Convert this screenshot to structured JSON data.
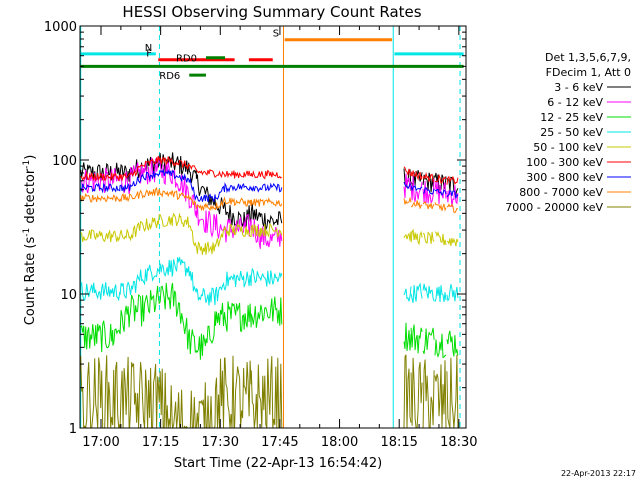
{
  "chart_data": {
    "type": "line",
    "title": "HESSI Observing Summary Count Rates",
    "xlabel": "Start Time (22-Apr-13 16:54:42)",
    "ylabel_main": "Count Rate (s",
    "ylabel_sup1": "-1",
    "ylabel_mid": " detector",
    "ylabel_sup2": "-1",
    "ylabel_end": ")",
    "footer_date": "22-Apr-2013 22:17",
    "y_scale": "log",
    "ylim": [
      1,
      1000
    ],
    "xlim": [
      16.912,
      18.53
    ],
    "x_ticks": [
      {
        "v": 17.0,
        "label": "17:00"
      },
      {
        "v": 17.25,
        "label": "17:15"
      },
      {
        "v": 17.5,
        "label": "17:30"
      },
      {
        "v": 17.75,
        "label": "17:45"
      },
      {
        "v": 18.0,
        "label": "18:00"
      },
      {
        "v": 18.25,
        "label": "18:15"
      },
      {
        "v": 18.5,
        "label": "18:30"
      }
    ],
    "y_ticks": [
      {
        "v": 1,
        "label": "1"
      },
      {
        "v": 10,
        "label": "10"
      },
      {
        "v": 100,
        "label": "100"
      },
      {
        "v": 1000,
        "label": "1000"
      }
    ],
    "legend": {
      "header1": "Det 1,3,5,6,7,9,",
      "header2": "FDecim 1, Att 0",
      "placement": "right"
    },
    "flags": [
      {
        "label": "N",
        "x": [
          16.915,
          17.23
        ],
        "y": 620,
        "color": "#00e5e5"
      },
      {
        "label": "F",
        "x": [
          17.24,
          17.56
        ],
        "y": 560,
        "color": "#ff0000"
      },
      {
        "label": "",
        "x": [
          17.62,
          17.72
        ],
        "y": 560,
        "color": "#ff0000"
      },
      {
        "label": "RD0",
        "x": [
          17.44,
          17.52
        ],
        "y": 580,
        "color": "#008000"
      },
      {
        "label": "RD6",
        "x": [
          17.37,
          17.44
        ],
        "y": 430,
        "color": "#008000"
      },
      {
        "label": "S",
        "x": [
          17.77,
          18.22
        ],
        "y": 790,
        "color": "#ff8000"
      },
      {
        "label": "",
        "x": [
          18.23,
          18.52
        ],
        "y": 620,
        "color": "#00e5e5"
      },
      {
        "label": "",
        "x": [
          16.915,
          18.52
        ],
        "y": 500,
        "color": "#008000"
      }
    ],
    "vlines": [
      {
        "x": 16.915,
        "color": "#00e5e5",
        "style": "solid"
      },
      {
        "x": 17.245,
        "color": "#00e5e5",
        "style": "dashed"
      },
      {
        "x": 17.765,
        "color": "#ff8000",
        "style": "solid"
      },
      {
        "x": 18.225,
        "color": "#00e5e5",
        "style": "solid"
      },
      {
        "x": 18.505,
        "color": "#00e5e5",
        "style": "dashed"
      }
    ],
    "series": [
      {
        "name": "3 - 6 keV",
        "color": "#000000",
        "x": [
          16.915,
          17.08,
          17.12,
          17.17,
          17.24,
          17.3,
          17.33,
          17.37,
          17.4,
          17.44,
          17.48,
          17.52,
          17.56,
          17.6,
          17.63,
          17.67,
          17.72,
          17.76,
          18.27,
          18.3,
          18.35,
          18.4,
          18.45,
          18.5
        ],
        "y": [
          80,
          80,
          80,
          90,
          95,
          95,
          92,
          85,
          70,
          55,
          48,
          42,
          38,
          35,
          40,
          37,
          35,
          35,
          75,
          70,
          70,
          68,
          66,
          65
        ],
        "noise": 0.08
      },
      {
        "name": "6 - 12 keV",
        "color": "#ff00ff",
        "x": [
          16.915,
          17.08,
          17.12,
          17.17,
          17.24,
          17.3,
          17.33,
          17.37,
          17.4,
          17.44,
          17.48,
          17.52,
          17.56,
          17.6,
          17.63,
          17.67,
          17.72,
          17.76,
          18.27,
          18.3,
          18.35,
          18.4,
          18.45,
          18.5
        ],
        "y": [
          70,
          70,
          70,
          80,
          85,
          80,
          70,
          55,
          42,
          35,
          32,
          30,
          31,
          30,
          33,
          27,
          25,
          28,
          65,
          62,
          60,
          58,
          56,
          55
        ],
        "noise": 0.1
      },
      {
        "name": "12 - 25 keV",
        "color": "#00dd00",
        "x": [
          16.915,
          17.05,
          17.08,
          17.12,
          17.17,
          17.24,
          17.3,
          17.33,
          17.37,
          17.4,
          17.44,
          17.48,
          17.52,
          17.56,
          17.6,
          17.63,
          17.67,
          17.72,
          17.76,
          18.27,
          18.3,
          18.35,
          18.4,
          18.45,
          18.5
        ],
        "y": [
          4.8,
          4.8,
          5.8,
          7.5,
          7.5,
          9,
          9.5,
          8,
          4.5,
          4,
          4,
          6.5,
          6.8,
          6.8,
          7,
          7,
          7.5,
          7.5,
          7.5,
          5,
          4.8,
          4.6,
          4.5,
          4.4,
          4.3
        ],
        "noise": 0.12
      },
      {
        "name": "25 - 50 keV",
        "color": "#00e5e5",
        "x": [
          16.915,
          17.08,
          17.12,
          17.17,
          17.24,
          17.3,
          17.33,
          17.37,
          17.4,
          17.44,
          17.48,
          17.52,
          17.56,
          17.6,
          17.63,
          17.67,
          17.72,
          17.76,
          18.27,
          18.3,
          18.35,
          18.4,
          18.45,
          18.5
        ],
        "y": [
          10.5,
          10.5,
          10.5,
          13.5,
          15.5,
          16,
          16,
          15.5,
          9.5,
          9.5,
          9.5,
          12.5,
          13,
          13,
          13.5,
          13,
          13,
          13,
          10,
          10,
          10.5,
          10,
          10.3,
          10
        ],
        "noise": 0.07
      },
      {
        "name": "50 - 100 keV",
        "color": "#c8c800",
        "x": [
          16.915,
          17.08,
          17.12,
          17.17,
          17.24,
          17.3,
          17.33,
          17.37,
          17.4,
          17.44,
          17.48,
          17.52,
          17.56,
          17.6,
          17.63,
          17.67,
          17.72,
          17.76,
          18.27,
          18.3,
          18.35,
          18.4,
          18.45,
          18.5
        ],
        "y": [
          27,
          27,
          27,
          32,
          35,
          36,
          36,
          34,
          22,
          22,
          22,
          30,
          30,
          30,
          30,
          30,
          30,
          30,
          28,
          27,
          26,
          26,
          25,
          25
        ],
        "noise": 0.05
      },
      {
        "name": "100 - 300 keV",
        "color": "#ff0000",
        "x": [
          16.915,
          17.08,
          17.12,
          17.17,
          17.24,
          17.3,
          17.33,
          17.37,
          17.4,
          17.44,
          17.48,
          17.52,
          17.56,
          17.6,
          17.63,
          17.67,
          17.72,
          17.76,
          18.27,
          18.3,
          18.35,
          18.4,
          18.45,
          18.5
        ],
        "y": [
          75,
          75,
          75,
          90,
          100,
          98,
          95,
          90,
          82,
          80,
          80,
          78,
          78,
          78,
          78,
          78,
          78,
          78,
          85,
          80,
          75,
          73,
          70,
          70
        ],
        "noise": 0.03
      },
      {
        "name": "300 - 800 keV",
        "color": "#0000ff",
        "x": [
          16.915,
          17.08,
          17.12,
          17.17,
          17.24,
          17.3,
          17.33,
          17.37,
          17.4,
          17.44,
          17.48,
          17.52,
          17.56,
          17.6,
          17.63,
          17.67,
          17.72,
          17.76,
          18.27,
          18.3,
          18.35,
          18.4,
          18.45,
          18.5
        ],
        "y": [
          62,
          62,
          62,
          75,
          80,
          78,
          75,
          70,
          52,
          52,
          52,
          62,
          63,
          63,
          63,
          62,
          62,
          62,
          65,
          62,
          60,
          58,
          56,
          55
        ],
        "noise": 0.03
      },
      {
        "name": "800 - 7000 keV",
        "color": "#ff8000",
        "x": [
          16.915,
          17.08,
          17.12,
          17.17,
          17.24,
          17.3,
          17.33,
          17.37,
          17.4,
          17.44,
          17.48,
          17.52,
          17.56,
          17.6,
          17.63,
          17.67,
          17.72,
          17.76,
          18.27,
          18.3,
          18.35,
          18.4,
          18.45,
          18.5
        ],
        "y": [
          52,
          52,
          52,
          56,
          58,
          56,
          54,
          52,
          45,
          45,
          45,
          50,
          49,
          48,
          48,
          48,
          48,
          48,
          50,
          48,
          46,
          45,
          44,
          43
        ],
        "noise": 0.03
      },
      {
        "name": "7000 - 20000 keV",
        "color": "#808000",
        "x": [
          16.915,
          17.08,
          17.12,
          17.17,
          17.24,
          17.3,
          17.37,
          17.44,
          17.48,
          17.52,
          17.56,
          17.6,
          17.63,
          17.67,
          17.72,
          17.76,
          18.27,
          18.3,
          18.35,
          18.4,
          18.45,
          18.5
        ],
        "y": [
          1.6,
          1.6,
          1.5,
          1.5,
          1.5,
          1,
          1,
          1,
          1.5,
          1.6,
          1.6,
          1.5,
          1.5,
          1.5,
          1.6,
          1.6,
          1.6,
          1.6,
          1.5,
          1.6,
          1.5,
          1.6
        ],
        "noise": 0.35
      }
    ]
  }
}
